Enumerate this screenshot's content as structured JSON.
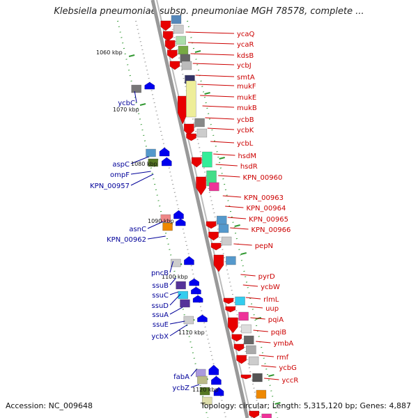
{
  "title": "Klebsiella pneumoniae subsp. pneumoniae MGH 78578, complete ...",
  "footer": {
    "accession": "Accession: NC_009648",
    "summary": "Topology: circular; Length: 5,315,120 bp; Genes: 4,887"
  },
  "kbp_labels": [
    "1060 kbp",
    "1070 kbp",
    "1080 kbp",
    "1090 kbp",
    "1100 kbp",
    "1110 kbp",
    "1120 kbp"
  ],
  "right_genes": [
    "ycaQ",
    "ycaR",
    "kdsB",
    "ycbJ",
    "smtA",
    "mukF",
    "mukE",
    "mukB",
    "ycbB",
    "ycbK",
    "ycbL",
    "hsdM",
    "hsdR",
    "KPN_00960",
    "KPN_00963",
    "KPN_00964",
    "KPN_00965",
    "KPN_00966",
    "pepN",
    "pyrD",
    "ycbW",
    "rlmL",
    "uup",
    "pqiA",
    "pqiB",
    "ymbA",
    "rmf",
    "ycbG",
    "yccR"
  ],
  "left_genes": [
    "ycbC",
    "aspC",
    "ompF",
    "KPN_00957",
    "asnC",
    "KPN_00962",
    "pncB",
    "ssuB",
    "ssuC",
    "ssuD",
    "ssuA",
    "ssuE",
    "ycbX",
    "fabA",
    "ycbZ"
  ],
  "colors": {
    "forward_strand": "#e80000",
    "reverse_strand": "#0000ee",
    "right_label": "#cc0000",
    "left_label": "#000099",
    "tick": "#339933",
    "backbone": "#999999"
  }
}
